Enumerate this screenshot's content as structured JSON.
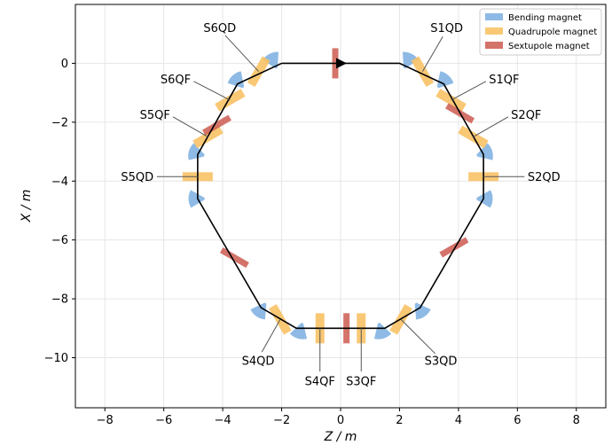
{
  "chart_data": {
    "type": "scatter",
    "xlabel": "Z / m",
    "ylabel": "X / m",
    "xlim": [
      -9,
      9
    ],
    "ylim": [
      -11.7,
      2.0
    ],
    "xticks": [
      -8,
      -6,
      -4,
      -2,
      0,
      2,
      4,
      6,
      8
    ],
    "yticks": [
      0,
      -2,
      -4,
      -6,
      -8,
      -10
    ],
    "xtick_labels": [
      "−8",
      "−6",
      "−4",
      "−2",
      "0",
      "2",
      "4",
      "6",
      "8"
    ],
    "ytick_labels": [
      "0",
      "−2",
      "−4",
      "−6",
      "−8",
      "−10"
    ],
    "grid": true,
    "legend_position": "top-right",
    "legend": [
      {
        "label": "Bending magnet",
        "color": "#7aaee0"
      },
      {
        "label": "Quadrupole magnet",
        "color": "#f8c266"
      },
      {
        "label": "Sextupole magnet",
        "color": "#cc5a50"
      }
    ],
    "orbit": [
      [
        -2,
        0
      ],
      [
        2,
        0
      ],
      [
        3.5,
        -0.7
      ],
      [
        4.85,
        -3.1
      ],
      [
        4.85,
        -4.6
      ],
      [
        2.7,
        -8.3
      ],
      [
        1.5,
        -9
      ],
      [
        -1.5,
        -9
      ],
      [
        -2.7,
        -8.3
      ],
      [
        -4.85,
        -4.6
      ],
      [
        -4.85,
        -3.1
      ],
      [
        -3.5,
        -0.7
      ],
      [
        -2,
        0
      ]
    ],
    "direction_arrow": [
      0,
      0
    ],
    "bending_magnets": [
      {
        "z": 2.25,
        "x": 0.0,
        "angle": -90
      },
      {
        "z": 3.42,
        "x": -0.68,
        "angle": -60
      },
      {
        "z": 4.8,
        "x": -3.08,
        "angle": -30
      },
      {
        "z": 4.8,
        "x": -4.6,
        "angle": 0
      },
      {
        "z": 2.65,
        "x": -8.3,
        "angle": 30
      },
      {
        "z": 1.35,
        "x": -9.0,
        "angle": 60
      },
      {
        "z": -1.35,
        "x": -9.0,
        "angle": 120
      },
      {
        "z": -2.65,
        "x": -8.3,
        "angle": 150
      },
      {
        "z": -4.8,
        "x": -4.6,
        "angle": 180
      },
      {
        "z": -4.8,
        "x": -3.08,
        "angle": 210
      },
      {
        "z": -3.42,
        "x": -0.68,
        "angle": 240
      },
      {
        "z": -2.25,
        "x": 0.0,
        "angle": 270
      }
    ],
    "quadrupoles": [
      {
        "name": "S1QD",
        "z": 2.78,
        "x": -0.28,
        "angle": 60
      },
      {
        "name": "S1QF",
        "z": 3.75,
        "x": -1.25,
        "angle": 30
      },
      {
        "name": "S2QF",
        "z": 4.5,
        "x": -2.5,
        "angle": 30
      },
      {
        "name": "S2QD",
        "z": 4.85,
        "x": -3.85,
        "angle": 0
      },
      {
        "name": "S3QD",
        "z": 2.05,
        "x": -8.7,
        "angle": -60
      },
      {
        "name": "S3QF",
        "z": 0.7,
        "x": -9.0,
        "angle": -90
      },
      {
        "name": "S4QF",
        "z": -0.7,
        "x": -9.0,
        "angle": -90
      },
      {
        "name": "S4QD",
        "z": -2.05,
        "x": -8.7,
        "angle": -120
      },
      {
        "name": "S5QD",
        "z": -4.85,
        "x": -3.85,
        "angle": 0
      },
      {
        "name": "S5QF",
        "z": -4.5,
        "x": -2.5,
        "angle": -30
      },
      {
        "name": "S6QF",
        "z": -3.75,
        "x": -1.25,
        "angle": -30
      },
      {
        "name": "S6QD",
        "z": -2.78,
        "x": -0.28,
        "angle": -60
      }
    ],
    "sextupoles": [
      {
        "z": -0.18,
        "x": 0.0,
        "angle": 90
      },
      {
        "z": 4.05,
        "x": -1.7,
        "angle": 30
      },
      {
        "z": 3.85,
        "x": -6.25,
        "angle": -30
      },
      {
        "z": 0.2,
        "x": -9.0,
        "angle": 90
      },
      {
        "z": -3.6,
        "x": -6.6,
        "angle": 30
      },
      {
        "z": -4.2,
        "x": -2.1,
        "angle": -30
      }
    ],
    "annotations": [
      {
        "text": "S1QD",
        "tz": 3.6,
        "tx": 1.2,
        "z": 2.78,
        "x": -0.28
      },
      {
        "text": "S1QF",
        "tz": 5.55,
        "tx": -0.55,
        "z": 3.75,
        "x": -1.25
      },
      {
        "text": "S2QF",
        "tz": 6.3,
        "tx": -1.75,
        "z": 4.5,
        "x": -2.5
      },
      {
        "text": "S2QD",
        "tz": 6.9,
        "tx": -3.85,
        "z": 4.85,
        "x": -3.85
      },
      {
        "text": "S3QD",
        "tz": 3.4,
        "tx": -10.1,
        "z": 2.05,
        "x": -8.7
      },
      {
        "text": "S3QF",
        "tz": 0.7,
        "tx": -10.8,
        "z": 0.7,
        "x": -9.0
      },
      {
        "text": "S4QF",
        "tz": -0.7,
        "tx": -10.8,
        "z": -0.7,
        "x": -9.0
      },
      {
        "text": "S4QD",
        "tz": -2.8,
        "tx": -10.1,
        "z": -2.05,
        "x": -8.7
      },
      {
        "text": "S5QD",
        "tz": -6.9,
        "tx": -3.85,
        "z": -4.85,
        "x": -3.85
      },
      {
        "text": "S5QF",
        "tz": -6.3,
        "tx": -1.75,
        "z": -4.5,
        "x": -2.5
      },
      {
        "text": "S6QF",
        "tz": -5.6,
        "tx": -0.55,
        "z": -3.75,
        "x": -1.25
      },
      {
        "text": "S6QD",
        "tz": -4.1,
        "tx": 1.2,
        "z": -2.78,
        "x": -0.28
      }
    ]
  }
}
